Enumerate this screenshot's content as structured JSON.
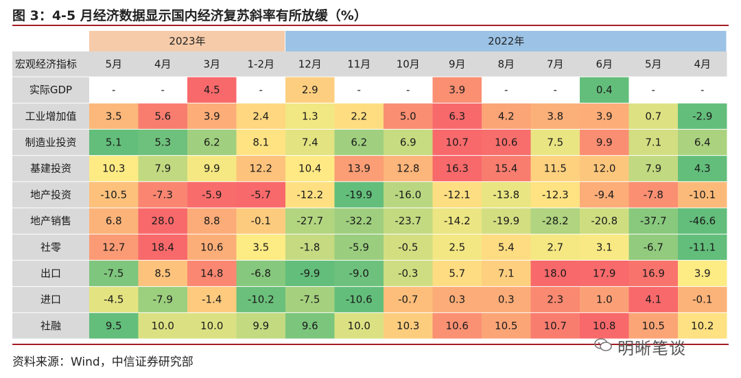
{
  "title": "图 3：4-5 月经济数据显示国内经济复苏斜率有所放缓（%）",
  "source": "资料来源：Wind，中信证券研究部",
  "watermark": "明晰笔谈",
  "colors": {
    "year_2023": "#f6cba9",
    "year_2022": "#9cc3e6",
    "header_bg": "#d9d9d9",
    "scale_low": "#63be7b",
    "scale_mid": "#ffeb84",
    "scale_high": "#f8696b",
    "rule": "#a31d23"
  },
  "chart_data": {
    "type": "table",
    "year_groups": [
      {
        "label": "2023年",
        "span": 4
      },
      {
        "label": "2022年",
        "span": 9
      }
    ],
    "corner_label": "宏观经济指标",
    "columns": [
      "5月",
      "4月",
      "3月",
      "1-2月",
      "12月",
      "11月",
      "10月",
      "9月",
      "8月",
      "7月",
      "6月",
      "5月",
      "4月"
    ],
    "rows": [
      {
        "name": "实际GDP",
        "values": [
          "-",
          "-",
          "4.5",
          "-",
          "2.9",
          "-",
          "-",
          "3.9",
          "-",
          "-",
          "0.4",
          "-",
          "-"
        ]
      },
      {
        "name": "工业增加值",
        "values": [
          "3.5",
          "5.6",
          "3.9",
          "2.4",
          "1.3",
          "2.2",
          "5.0",
          "6.3",
          "4.2",
          "3.8",
          "3.9",
          "0.7",
          "-2.9"
        ]
      },
      {
        "name": "制造业投资",
        "values": [
          "5.1",
          "5.3",
          "6.2",
          "8.1",
          "7.4",
          "6.2",
          "6.9",
          "10.7",
          "10.6",
          "7.5",
          "9.9",
          "7.1",
          "6.4"
        ]
      },
      {
        "name": "基建投资",
        "values": [
          "10.3",
          "7.9",
          "9.9",
          "12.2",
          "10.4",
          "13.9",
          "12.8",
          "16.3",
          "15.4",
          "11.5",
          "12.0",
          "7.9",
          "4.3"
        ]
      },
      {
        "name": "地产投资",
        "values": [
          "-10.5",
          "-7.3",
          "-5.9",
          "-5.7",
          "-12.2",
          "-19.9",
          "-16.0",
          "-12.1",
          "-13.8",
          "-12.3",
          "-9.4",
          "-7.8",
          "-10.1"
        ]
      },
      {
        "name": "地产销售",
        "values": [
          "6.8",
          "28.0",
          "8.8",
          "-0.1",
          "-27.7",
          "-32.2",
          "-23.7",
          "-14.2",
          "-19.9",
          "-28.2",
          "-20.8",
          "-37.7",
          "-46.6"
        ]
      },
      {
        "name": "社零",
        "values": [
          "12.7",
          "18.4",
          "10.6",
          "3.5",
          "-1.8",
          "-5.9",
          "-0.5",
          "2.5",
          "5.4",
          "2.7",
          "3.1",
          "-6.7",
          "-11.1"
        ]
      },
      {
        "name": "出口",
        "values": [
          "-7.5",
          "8.5",
          "14.8",
          "-6.8",
          "-9.9",
          "-9.0",
          "-0.3",
          "5.7",
          "7.1",
          "18.0",
          "17.9",
          "16.9",
          "3.9"
        ]
      },
      {
        "name": "进口",
        "values": [
          "-4.5",
          "-7.9",
          "-1.4",
          "-10.2",
          "-7.5",
          "-10.6",
          "-0.7",
          "0.3",
          "0.3",
          "2.3",
          "1.0",
          "4.1",
          "-0.1"
        ]
      },
      {
        "name": "社融",
        "values": [
          "9.5",
          "10.0",
          "10.0",
          "9.9",
          "9.6",
          "10.0",
          "10.3",
          "10.6",
          "10.5",
          "10.7",
          "10.8",
          "10.5",
          "10.2"
        ]
      }
    ]
  }
}
